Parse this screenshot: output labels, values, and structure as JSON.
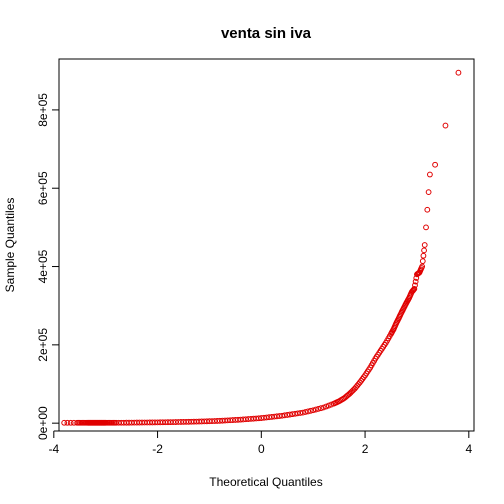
{
  "chart_data": {
    "type": "scatter",
    "title": "venta sin iva",
    "xlabel": "Theoretical Quantiles",
    "ylabel": "Sample Quantiles",
    "xlim": [
      -3.9,
      4.1
    ],
    "ylim": [
      -20000,
      930000
    ],
    "x_ticks": [
      -4,
      -2,
      0,
      2,
      4
    ],
    "x_tick_labels": [
      "-4",
      "-2",
      "0",
      "2",
      "4"
    ],
    "y_ticks": [
      0,
      200000,
      400000,
      600000,
      800000
    ],
    "y_tick_labels": [
      "0e+00",
      "2e+05",
      "4e+05",
      "6e+05",
      "8e+05"
    ],
    "grid": false,
    "point_color": "#e00000",
    "series": [
      {
        "x": [
          -3.8,
          -3.55,
          -3.45,
          -3.35,
          -3.3,
          -3.25,
          -3.2,
          -3.15,
          -3.1,
          -3.05,
          -3.0,
          -2.9,
          -2.8,
          -2.6,
          -2.4,
          -2.2,
          -2.0,
          -1.8,
          -1.6,
          -1.4,
          -1.2,
          -1.0,
          -0.8,
          -0.6,
          -0.4,
          -0.2,
          0.0,
          0.2,
          0.4,
          0.6,
          0.8,
          1.0,
          1.2,
          1.4,
          1.5,
          1.6,
          1.7,
          1.8,
          1.9,
          2.0,
          2.1,
          2.2,
          2.3,
          2.4,
          2.5,
          2.55,
          2.6,
          2.65,
          2.7,
          2.75,
          2.8,
          2.85,
          2.9,
          2.95,
          3.0,
          3.05,
          3.1,
          3.15,
          3.25,
          3.35,
          3.55,
          3.8
        ],
        "y": [
          1000,
          1000,
          1000,
          1000,
          1000,
          1000,
          1000,
          1000,
          1000,
          1000,
          1000,
          1000,
          1000,
          1200,
          1500,
          1800,
          2000,
          2500,
          3000,
          3500,
          4200,
          5000,
          6000,
          7500,
          9000,
          11000,
          13000,
          16000,
          19000,
          23000,
          27000,
          33000,
          40000,
          50000,
          56000,
          64000,
          75000,
          88000,
          104000,
          122000,
          142000,
          165000,
          185000,
          205000,
          228000,
          240000,
          255000,
          268000,
          282000,
          295000,
          308000,
          320000,
          335000,
          343000,
          380000,
          385000,
          400000,
          455000,
          635000,
          660000,
          760000,
          895000
        ]
      }
    ]
  }
}
